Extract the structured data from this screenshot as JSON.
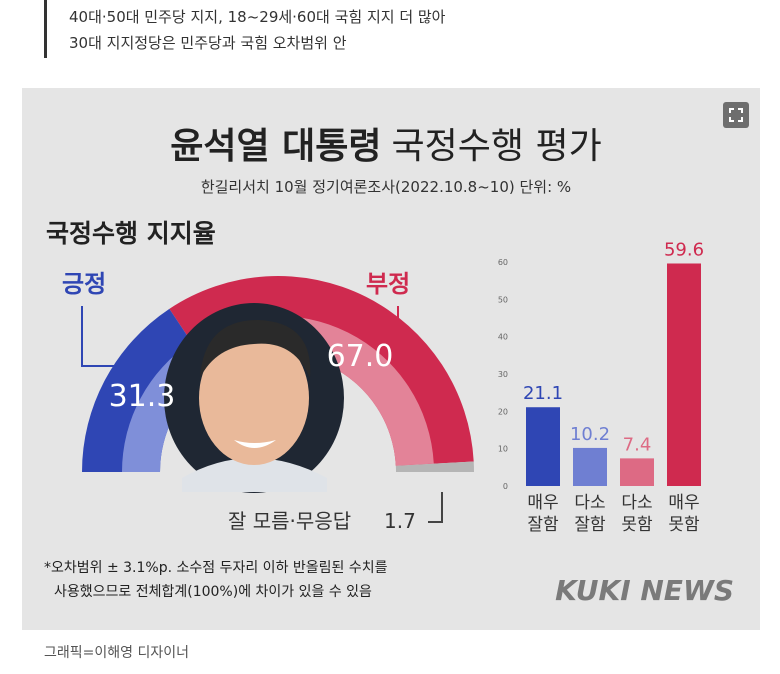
{
  "article": {
    "subheads": [
      "40대·50대 민주당 지지, 18~29세·60대 국힘 지지 더 많아",
      "30대 지지정당은 민주당과 국힘 오차범위 안"
    ],
    "caption": "그래픽=이해영 디자이너"
  },
  "icons": {
    "expand": "expand-icon"
  },
  "colors": {
    "positive": "#2f46b4",
    "negative": "#cf2a4f",
    "unknown": "#b5b5b5",
    "bg": "#e5e5e5"
  },
  "chart_data": [
    {
      "type": "pie",
      "title": "윤석열 대통령",
      "title_rest": "국정수행 평가",
      "subtitle": "한길리서치 10월 정기여론조사(2022.10.8~10) 단위: %",
      "section_title": "국정수행 지지율",
      "slices": [
        {
          "label": "긍정",
          "value": 31.3,
          "value_label": "31.3"
        },
        {
          "label": "부정",
          "value": 67.0,
          "value_label": "67.0"
        },
        {
          "label": "잘 모름·무응답",
          "value": 1.7,
          "value_label": "1.7"
        }
      ]
    },
    {
      "type": "bar",
      "categories": [
        {
          "line1": "매우",
          "line2": "잘함"
        },
        {
          "line1": "다소",
          "line2": "잘함"
        },
        {
          "line1": "다소",
          "line2": "못함"
        },
        {
          "line1": "매우",
          "line2": "못함"
        }
      ],
      "values": [
        21.1,
        10.2,
        7.4,
        59.6
      ],
      "value_labels": [
        "21.1",
        "10.2",
        "7.4",
        "59.6"
      ],
      "colors": [
        "#2f46b4",
        "#6f7fd2",
        "#dd6a84",
        "#cf2a4f"
      ],
      "ylim": [
        0,
        60
      ],
      "yticks": [
        "0",
        "10",
        "20",
        "30",
        "40",
        "50",
        "60"
      ],
      "xlabel": "",
      "ylabel": ""
    }
  ],
  "footnote": {
    "line1": "*오차범위 ± 3.1%p. 소수점 두자리 이하 반올림된 수치를",
    "line2": "사용했으므로 전체합계(100%)에 차이가 있을 수 있음"
  },
  "brand": "KUKI NEWS"
}
